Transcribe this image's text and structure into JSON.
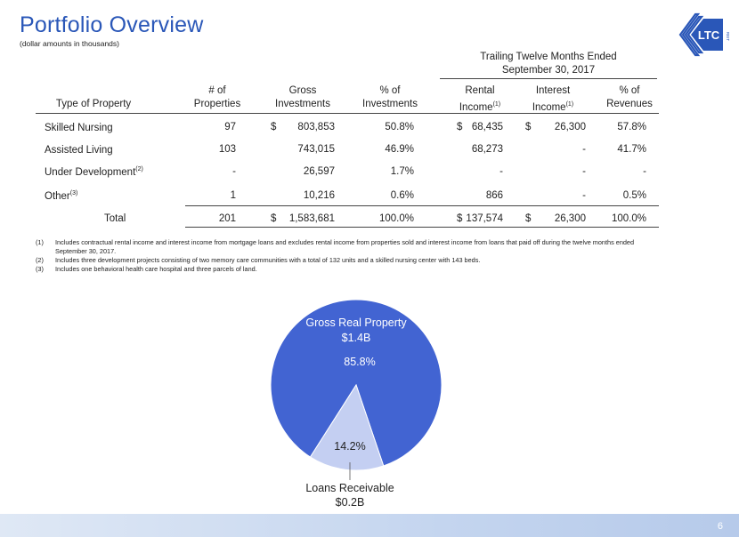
{
  "title": "Portfolio Overview",
  "subtitle": "(dollar amounts in thousands)",
  "logo": {
    "text": "LTC",
    "subtext": "REIT"
  },
  "ttm_header": [
    "Trailing Twelve Months Ended",
    "September 30, 2017"
  ],
  "headers": {
    "type": "Type of Property",
    "properties": [
      "# of",
      "Properties"
    ],
    "gross": [
      "Gross",
      "Investments"
    ],
    "pct_inv": [
      "% of",
      "Investments"
    ],
    "rental": [
      "Rental",
      "Income",
      "(1)"
    ],
    "interest": [
      "Interest",
      "Income",
      "(1)"
    ],
    "pct_rev": [
      "% of",
      "Revenues"
    ]
  },
  "rows": [
    {
      "type": "Skilled Nursing",
      "sup": "",
      "properties": "97",
      "gross_sym": "$",
      "gross": "803,853",
      "pct_inv": "50.8%",
      "rental_sym": "$",
      "rental": "68,435",
      "interest_sym": "$",
      "interest": "26,300",
      "pct_rev": "57.8%"
    },
    {
      "type": "Assisted Living",
      "sup": "",
      "properties": "103",
      "gross_sym": "",
      "gross": "743,015",
      "pct_inv": "46.9%",
      "rental_sym": "",
      "rental": "68,273",
      "interest_sym": "",
      "interest": "-",
      "pct_rev": "41.7%"
    },
    {
      "type": "Under Development",
      "sup": "(2)",
      "properties": "-",
      "gross_sym": "",
      "gross": "26,597",
      "pct_inv": "1.7%",
      "rental_sym": "",
      "rental": "-",
      "interest_sym": "",
      "interest": "-",
      "pct_rev": "-"
    },
    {
      "type": "Other",
      "sup": "(3)",
      "properties": "1",
      "gross_sym": "",
      "gross": "10,216",
      "pct_inv": "0.6%",
      "rental_sym": "",
      "rental": "866",
      "interest_sym": "",
      "interest": "-",
      "pct_rev": "0.5%"
    }
  ],
  "total": {
    "label": "Total",
    "properties": "201",
    "gross_sym": "$",
    "gross": "1,583,681",
    "pct_inv": "100.0%",
    "rental_sym": "$",
    "rental": "137,574",
    "interest_sym": "$",
    "interest": "26,300",
    "pct_rev": "100.0%"
  },
  "footnotes": [
    {
      "num": "(1)",
      "text": "Includes contractual rental income and interest income from mortgage loans and excludes rental income from properties sold and interest income from loans that paid off during the twelve months ended September 30, 2017."
    },
    {
      "num": "(2)",
      "text": "Includes three development projects consisting of two memory care communities with a total of 132 units and a skilled nursing center with 143 beds."
    },
    {
      "num": "(3)",
      "text": "Includes one behavioral health care hospital and three parcels of land."
    }
  ],
  "chart_data": {
    "type": "pie",
    "slices": [
      {
        "label": "Gross Real Property",
        "amount": "$1.4B",
        "pct_label": "85.8%",
        "value": 85.8,
        "color": "#4264d2"
      },
      {
        "label": "Loans Receivable",
        "amount": "$0.2B",
        "pct_label": "14.2%",
        "value": 14.2,
        "color": "#c4cff2"
      }
    ]
  },
  "page_number": "6",
  "colors": {
    "title": "#2a57b8",
    "pie_main": "#4264d2",
    "pie_small": "#c4cff2"
  }
}
